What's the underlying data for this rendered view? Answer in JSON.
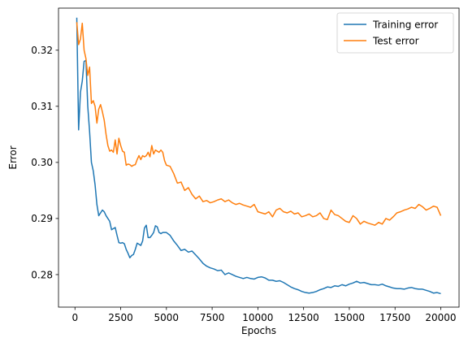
{
  "chart_data": {
    "type": "line",
    "title": "",
    "xlabel": "Epochs",
    "ylabel": "Error",
    "xlim": [
      -900,
      21000
    ],
    "ylim": [
      0.2742,
      0.3275
    ],
    "xticks": [
      0,
      2500,
      5000,
      7500,
      10000,
      12500,
      15000,
      17500,
      20000
    ],
    "xtick_labels": [
      "0",
      "2500",
      "5000",
      "7500",
      "10000",
      "12500",
      "15000",
      "17500",
      "20000"
    ],
    "yticks": [
      0.28,
      0.29,
      0.3,
      0.31,
      0.32
    ],
    "ytick_labels": [
      "0.28",
      "0.29",
      "0.30",
      "0.31",
      "0.32"
    ],
    "grid": false,
    "legend": "top-right",
    "series": [
      {
        "name": "Training error",
        "color": "#1f77b4",
        "x": [
          100,
          200,
          300,
          400,
          500,
          600,
          700,
          800,
          900,
          1000,
          1100,
          1200,
          1300,
          1400,
          1500,
          1600,
          1700,
          1800,
          1900,
          2000,
          2100,
          2200,
          2300,
          2400,
          2500,
          2600,
          2700,
          2800,
          2900,
          3000,
          3100,
          3200,
          3300,
          3400,
          3500,
          3600,
          3700,
          3800,
          3900,
          4000,
          4100,
          4200,
          4300,
          4400,
          4500,
          4600,
          4700,
          4800,
          4900,
          5000,
          5200,
          5400,
          5600,
          5800,
          6000,
          6200,
          6400,
          6600,
          6800,
          7000,
          7200,
          7400,
          7600,
          7800,
          8000,
          8200,
          8400,
          8600,
          8800,
          9000,
          9200,
          9400,
          9600,
          9800,
          10000,
          10200,
          10400,
          10600,
          10800,
          11000,
          11200,
          11400,
          11600,
          11800,
          12000,
          12200,
          12400,
          12600,
          12800,
          13000,
          13200,
          13400,
          13600,
          13800,
          14000,
          14200,
          14400,
          14600,
          14800,
          15000,
          15200,
          15400,
          15600,
          15800,
          16000,
          16200,
          16400,
          16600,
          16800,
          17000,
          17200,
          17400,
          17600,
          17800,
          18000,
          18200,
          18400,
          18600,
          18800,
          19000,
          19200,
          19400,
          19600,
          19800,
          20000
        ],
        "values": [
          0.3258,
          0.3058,
          0.3125,
          0.3145,
          0.318,
          0.3182,
          0.31,
          0.3055,
          0.3,
          0.2985,
          0.296,
          0.2925,
          0.2905,
          0.291,
          0.2915,
          0.2912,
          0.2905,
          0.29,
          0.2895,
          0.288,
          0.2882,
          0.2884,
          0.287,
          0.2857,
          0.2856,
          0.2857,
          0.2855,
          0.2845,
          0.2838,
          0.283,
          0.2834,
          0.2836,
          0.2845,
          0.2856,
          0.2854,
          0.2852,
          0.286,
          0.2883,
          0.2888,
          0.2866,
          0.2866,
          0.287,
          0.2875,
          0.2887,
          0.2885,
          0.2875,
          0.2873,
          0.2875,
          0.2875,
          0.2875,
          0.287,
          0.286,
          0.2852,
          0.2843,
          0.2845,
          0.284,
          0.2842,
          0.2835,
          0.2828,
          0.282,
          0.2815,
          0.2812,
          0.281,
          0.2807,
          0.2808,
          0.28,
          0.2803,
          0.28,
          0.2797,
          0.2795,
          0.2793,
          0.2795,
          0.2793,
          0.2792,
          0.2795,
          0.2796,
          0.2794,
          0.279,
          0.279,
          0.2788,
          0.2789,
          0.2786,
          0.2782,
          0.2778,
          0.2775,
          0.2773,
          0.277,
          0.2768,
          0.2767,
          0.2768,
          0.277,
          0.2773,
          0.2775,
          0.2778,
          0.2777,
          0.278,
          0.2779,
          0.2782,
          0.278,
          0.2783,
          0.2785,
          0.2788,
          0.2785,
          0.2786,
          0.2784,
          0.2782,
          0.2782,
          0.2781,
          0.2783,
          0.278,
          0.2778,
          0.2776,
          0.2775,
          0.2775,
          0.2774,
          0.2776,
          0.2777,
          0.2775,
          0.2774,
          0.2774,
          0.2772,
          0.277,
          0.2767,
          0.2768,
          0.2766
        ]
      },
      {
        "name": "Test error",
        "color": "#ff7f0e",
        "x": [
          100,
          200,
          300,
          400,
          500,
          600,
          700,
          800,
          900,
          1000,
          1100,
          1200,
          1300,
          1400,
          1500,
          1600,
          1700,
          1800,
          1900,
          2000,
          2100,
          2200,
          2300,
          2400,
          2500,
          2600,
          2700,
          2800,
          2900,
          3000,
          3100,
          3200,
          3300,
          3400,
          3500,
          3600,
          3700,
          3800,
          3900,
          4000,
          4100,
          4200,
          4300,
          4400,
          4500,
          4600,
          4700,
          4800,
          4900,
          5000,
          5200,
          5400,
          5600,
          5800,
          6000,
          6200,
          6400,
          6600,
          6800,
          7000,
          7200,
          7400,
          7600,
          7800,
          8000,
          8200,
          8400,
          8600,
          8800,
          9000,
          9200,
          9400,
          9600,
          9800,
          10000,
          10200,
          10400,
          10600,
          10800,
          11000,
          11200,
          11400,
          11600,
          11800,
          12000,
          12200,
          12400,
          12600,
          12800,
          13000,
          13200,
          13400,
          13600,
          13800,
          14000,
          14200,
          14400,
          14600,
          14800,
          15000,
          15200,
          15400,
          15600,
          15800,
          16000,
          16200,
          16400,
          16600,
          16800,
          17000,
          17200,
          17400,
          17600,
          17800,
          18000,
          18200,
          18400,
          18600,
          18800,
          19000,
          19200,
          19400,
          19600,
          19800,
          20000
        ],
        "values": [
          0.325,
          0.321,
          0.322,
          0.3248,
          0.32,
          0.3185,
          0.3155,
          0.317,
          0.3105,
          0.311,
          0.31,
          0.307,
          0.3095,
          0.3103,
          0.309,
          0.3075,
          0.305,
          0.303,
          0.302,
          0.3022,
          0.3018,
          0.304,
          0.3015,
          0.3043,
          0.303,
          0.302,
          0.3018,
          0.2995,
          0.2997,
          0.2996,
          0.2993,
          0.2995,
          0.2996,
          0.3005,
          0.3012,
          0.3005,
          0.3012,
          0.301,
          0.3012,
          0.3018,
          0.301,
          0.303,
          0.3015,
          0.3022,
          0.302,
          0.3018,
          0.3022,
          0.3018,
          0.3003,
          0.2995,
          0.2993,
          0.298,
          0.2963,
          0.2965,
          0.295,
          0.2955,
          0.2943,
          0.2935,
          0.294,
          0.293,
          0.2932,
          0.2928,
          0.293,
          0.2933,
          0.2935,
          0.293,
          0.2933,
          0.2928,
          0.2925,
          0.2927,
          0.2924,
          0.2922,
          0.292,
          0.2925,
          0.2912,
          0.291,
          0.2908,
          0.2912,
          0.2903,
          0.2915,
          0.2918,
          0.2912,
          0.291,
          0.2913,
          0.2908,
          0.291,
          0.2903,
          0.2905,
          0.2908,
          0.2903,
          0.2905,
          0.291,
          0.29,
          0.2898,
          0.2915,
          0.2907,
          0.2905,
          0.29,
          0.2895,
          0.2893,
          0.2905,
          0.29,
          0.289,
          0.2895,
          0.2892,
          0.289,
          0.2888,
          0.2893,
          0.289,
          0.29,
          0.2897,
          0.2903,
          0.291,
          0.2912,
          0.2915,
          0.2917,
          0.292,
          0.2918,
          0.2925,
          0.2921,
          0.2915,
          0.2918,
          0.2922,
          0.292,
          0.2905
        ]
      }
    ]
  }
}
